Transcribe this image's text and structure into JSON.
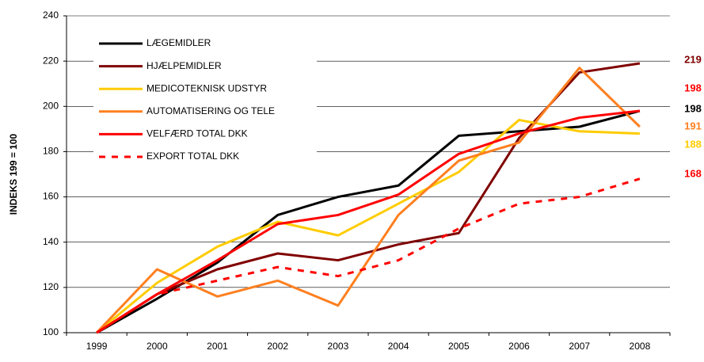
{
  "chart_data": {
    "type": "line",
    "y_label": "INDEKS 199 = 100",
    "categories": [
      "1999",
      "2000",
      "2001",
      "2002",
      "2003",
      "2004",
      "2005",
      "2006",
      "2007",
      "2008"
    ],
    "series": [
      {
        "name": "LÆGEMIDLER",
        "color": "#000000",
        "values": [
          100,
          115,
          131,
          152,
          160,
          165,
          187,
          189,
          191,
          198
        ]
      },
      {
        "name": "HJÆLPEMIDLER",
        "color": "#800000",
        "values": [
          100,
          117,
          128,
          135,
          132,
          139,
          144,
          186,
          215,
          219
        ]
      },
      {
        "name": "MEDICOTEKNISK UDSTYR",
        "color": "#ffcc00",
        "values": [
          100,
          122,
          138,
          149,
          143,
          157,
          171,
          194,
          189,
          188
        ]
      },
      {
        "name": "AUTOMATISERING OG TELE",
        "color": "#ff7f1f",
        "values": [
          100,
          128,
          116,
          123,
          112,
          152,
          176,
          184,
          217,
          191
        ]
      },
      {
        "name": "VELFÆRD TOTAL DKK",
        "color": "#ff0000",
        "values": [
          100,
          117,
          132,
          148,
          152,
          161,
          179,
          188,
          195,
          198
        ]
      },
      {
        "name": "EXPORT TOTAL DKK",
        "color": "#ff0000",
        "dashed": true,
        "values": [
          100,
          117,
          123,
          129,
          125,
          132,
          146,
          157,
          160,
          168
        ]
      }
    ],
    "ylim": [
      100,
      240
    ],
    "yticks": [
      100,
      120,
      140,
      160,
      180,
      200,
      220,
      240
    ],
    "grid": true,
    "legend": "upper left"
  }
}
